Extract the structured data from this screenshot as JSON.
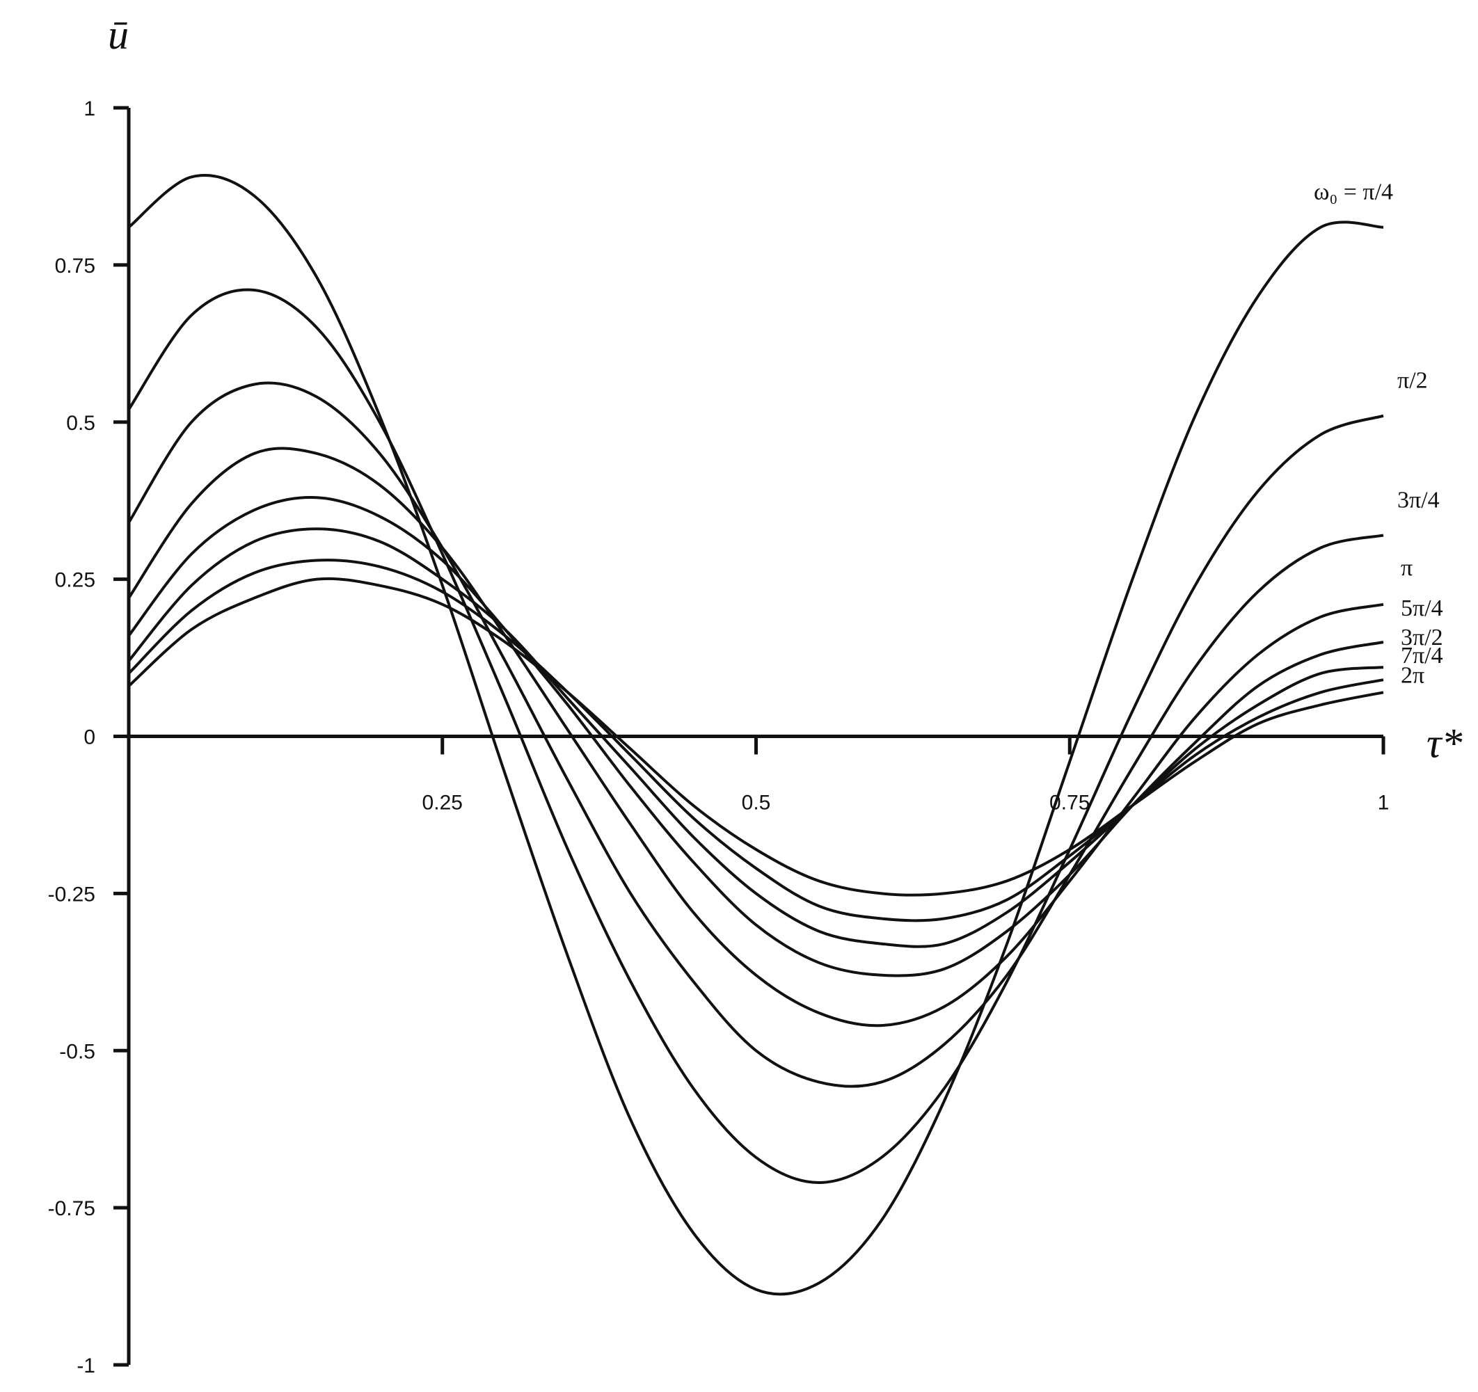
{
  "chart_data": {
    "type": "line",
    "xlabel": "τ*",
    "ylabel": "ū",
    "xlim": [
      0,
      1
    ],
    "ylim": [
      -1,
      1
    ],
    "x_ticks": [
      0.25,
      0.5,
      0.75,
      1
    ],
    "x_tick_labels": [
      "0.25",
      "0.5",
      "0.75",
      "1"
    ],
    "y_ticks": [
      1,
      0.75,
      0.5,
      0.25,
      0,
      -0.25,
      -0.5,
      -0.75,
      -1
    ],
    "y_tick_labels": [
      "1",
      "0.75",
      "0.5",
      "0.25",
      "0",
      "-0.25",
      "-0.5",
      "-0.75",
      "-1"
    ],
    "grid": false,
    "legend": "inline labels at right end of each curve",
    "x": [
      0,
      0.05,
      0.1,
      0.15,
      0.2,
      0.25,
      0.3,
      0.35,
      0.4,
      0.45,
      0.5,
      0.55,
      0.6,
      0.65,
      0.7,
      0.75,
      0.8,
      0.85,
      0.9,
      0.95,
      1
    ],
    "series": [
      {
        "name": "ω₀ = π/4",
        "values": [
          0.81,
          0.89,
          0.86,
          0.73,
          0.51,
          0.24,
          -0.06,
          -0.35,
          -0.61,
          -0.79,
          -0.88,
          -0.87,
          -0.77,
          -0.58,
          -0.33,
          -0.04,
          0.25,
          0.51,
          0.7,
          0.81,
          0.81
        ]
      },
      {
        "name": "π/2",
        "values": [
          0.52,
          0.67,
          0.71,
          0.65,
          0.5,
          0.29,
          0.06,
          -0.18,
          -0.39,
          -0.56,
          -0.67,
          -0.71,
          -0.67,
          -0.56,
          -0.39,
          -0.18,
          0.04,
          0.24,
          0.39,
          0.48,
          0.51
        ]
      },
      {
        "name": "3π/4",
        "values": [
          0.34,
          0.5,
          0.56,
          0.54,
          0.45,
          0.3,
          0.12,
          -0.07,
          -0.25,
          -0.39,
          -0.5,
          -0.55,
          -0.55,
          -0.49,
          -0.38,
          -0.22,
          -0.05,
          0.11,
          0.23,
          0.3,
          0.32
        ]
      },
      {
        "name": "π",
        "values": [
          0.22,
          0.37,
          0.45,
          0.45,
          0.4,
          0.3,
          0.16,
          0.01,
          -0.14,
          -0.28,
          -0.38,
          -0.44,
          -0.46,
          -0.43,
          -0.35,
          -0.23,
          -0.1,
          0.03,
          0.13,
          0.19,
          0.21
        ]
      },
      {
        "name": "5π/4",
        "values": [
          0.16,
          0.29,
          0.36,
          0.38,
          0.35,
          0.28,
          0.17,
          0.05,
          -0.08,
          -0.2,
          -0.3,
          -0.36,
          -0.38,
          -0.37,
          -0.31,
          -0.22,
          -0.11,
          -0.01,
          0.08,
          0.13,
          0.15
        ]
      },
      {
        "name": "3π/2",
        "values": [
          0.12,
          0.24,
          0.31,
          0.33,
          0.31,
          0.25,
          0.17,
          0.06,
          -0.05,
          -0.16,
          -0.25,
          -0.31,
          -0.33,
          -0.33,
          -0.28,
          -0.2,
          -0.11,
          -0.02,
          0.05,
          0.1,
          0.11
        ]
      },
      {
        "name": "7π/4",
        "values": [
          0.1,
          0.2,
          0.26,
          0.28,
          0.27,
          0.23,
          0.16,
          0.07,
          -0.03,
          -0.13,
          -0.21,
          -0.27,
          -0.29,
          -0.29,
          -0.26,
          -0.19,
          -0.11,
          -0.03,
          0.03,
          0.07,
          0.09
        ]
      },
      {
        "name": "2π",
        "values": [
          0.08,
          0.17,
          0.22,
          0.25,
          0.24,
          0.21,
          0.15,
          0.07,
          -0.02,
          -0.11,
          -0.18,
          -0.23,
          -0.25,
          -0.25,
          -0.23,
          -0.18,
          -0.11,
          -0.04,
          0.02,
          0.05,
          0.07
        ]
      }
    ]
  }
}
